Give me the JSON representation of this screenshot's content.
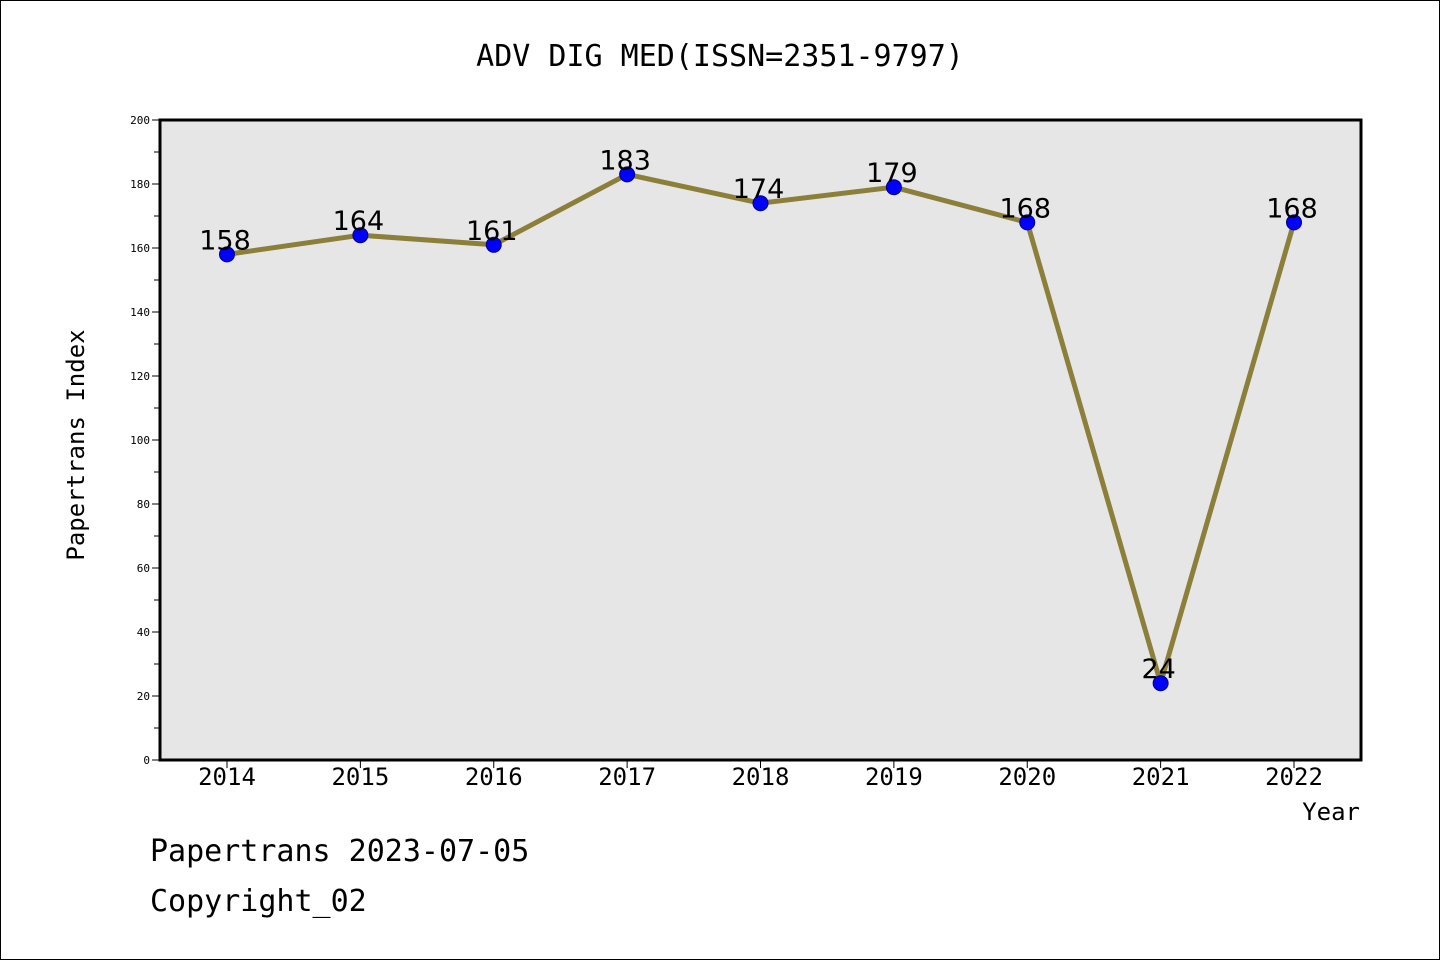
{
  "chart_data": {
    "type": "line",
    "title": "ADV DIG MED(ISSN=2351-9797)",
    "xlabel": "Year",
    "ylabel": "Papertrans Index",
    "categories": [
      "2014",
      "2015",
      "2016",
      "2017",
      "2018",
      "2019",
      "2020",
      "2021",
      "2022"
    ],
    "series": [
      {
        "values": [
          158,
          164,
          161,
          183,
          174,
          179,
          168,
          24,
          168
        ]
      }
    ],
    "data_labels": [
      "158",
      "164",
      "161",
      "183",
      "174",
      "179",
      "168",
      "24",
      "168"
    ],
    "yticks": [
      0,
      20,
      40,
      60,
      80,
      100,
      120,
      140,
      160,
      180,
      200
    ],
    "ylim": [
      0,
      200
    ],
    "grid": false,
    "colors": {
      "line": "#8c7f3a",
      "marker": "#0000ff",
      "plot_bg": "#e6e6e6"
    }
  },
  "footer": {
    "line1": "Papertrans 2023-07-05",
    "line2": "Copyright_02"
  }
}
